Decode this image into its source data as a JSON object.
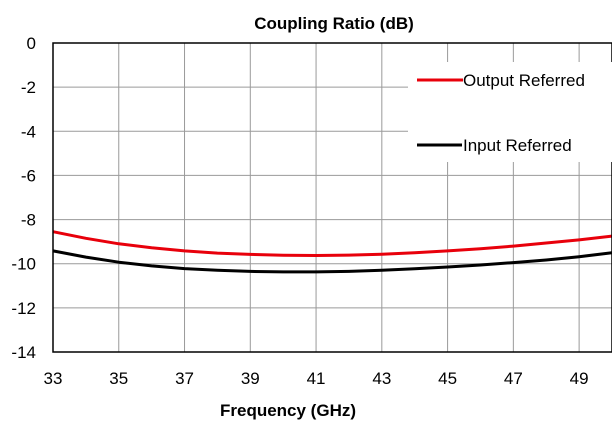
{
  "chart_data": {
    "type": "line",
    "title": "Coupling Ratio (dB)",
    "xlabel": "Frequency (GHz)",
    "ylabel": "",
    "xlim": [
      33,
      50
    ],
    "ylim": [
      -14,
      0
    ],
    "x_ticks": [
      "33",
      "35",
      "37",
      "39",
      "41",
      "43",
      "45",
      "47",
      "49"
    ],
    "y_ticks": [
      "0",
      "-2",
      "-4",
      "-6",
      "-8",
      "-10",
      "-12",
      "-14"
    ],
    "grid": true,
    "legend_position": "top-right",
    "x": [
      33,
      34,
      35,
      36,
      37,
      38,
      39,
      40,
      41,
      42,
      43,
      44,
      45,
      46,
      47,
      48,
      49,
      50
    ],
    "series": [
      {
        "name": "Output Referred",
        "color": "#e8000b",
        "values": [
          -8.55,
          -8.85,
          -9.1,
          -9.28,
          -9.42,
          -9.52,
          -9.58,
          -9.62,
          -9.63,
          -9.61,
          -9.57,
          -9.5,
          -9.42,
          -9.32,
          -9.2,
          -9.06,
          -8.92,
          -8.75
        ]
      },
      {
        "name": "Input Referred",
        "color": "#000000",
        "values": [
          -9.42,
          -9.7,
          -9.93,
          -10.1,
          -10.22,
          -10.3,
          -10.35,
          -10.37,
          -10.37,
          -10.35,
          -10.3,
          -10.23,
          -10.15,
          -10.06,
          -9.95,
          -9.83,
          -9.68,
          -9.5
        ]
      }
    ]
  }
}
